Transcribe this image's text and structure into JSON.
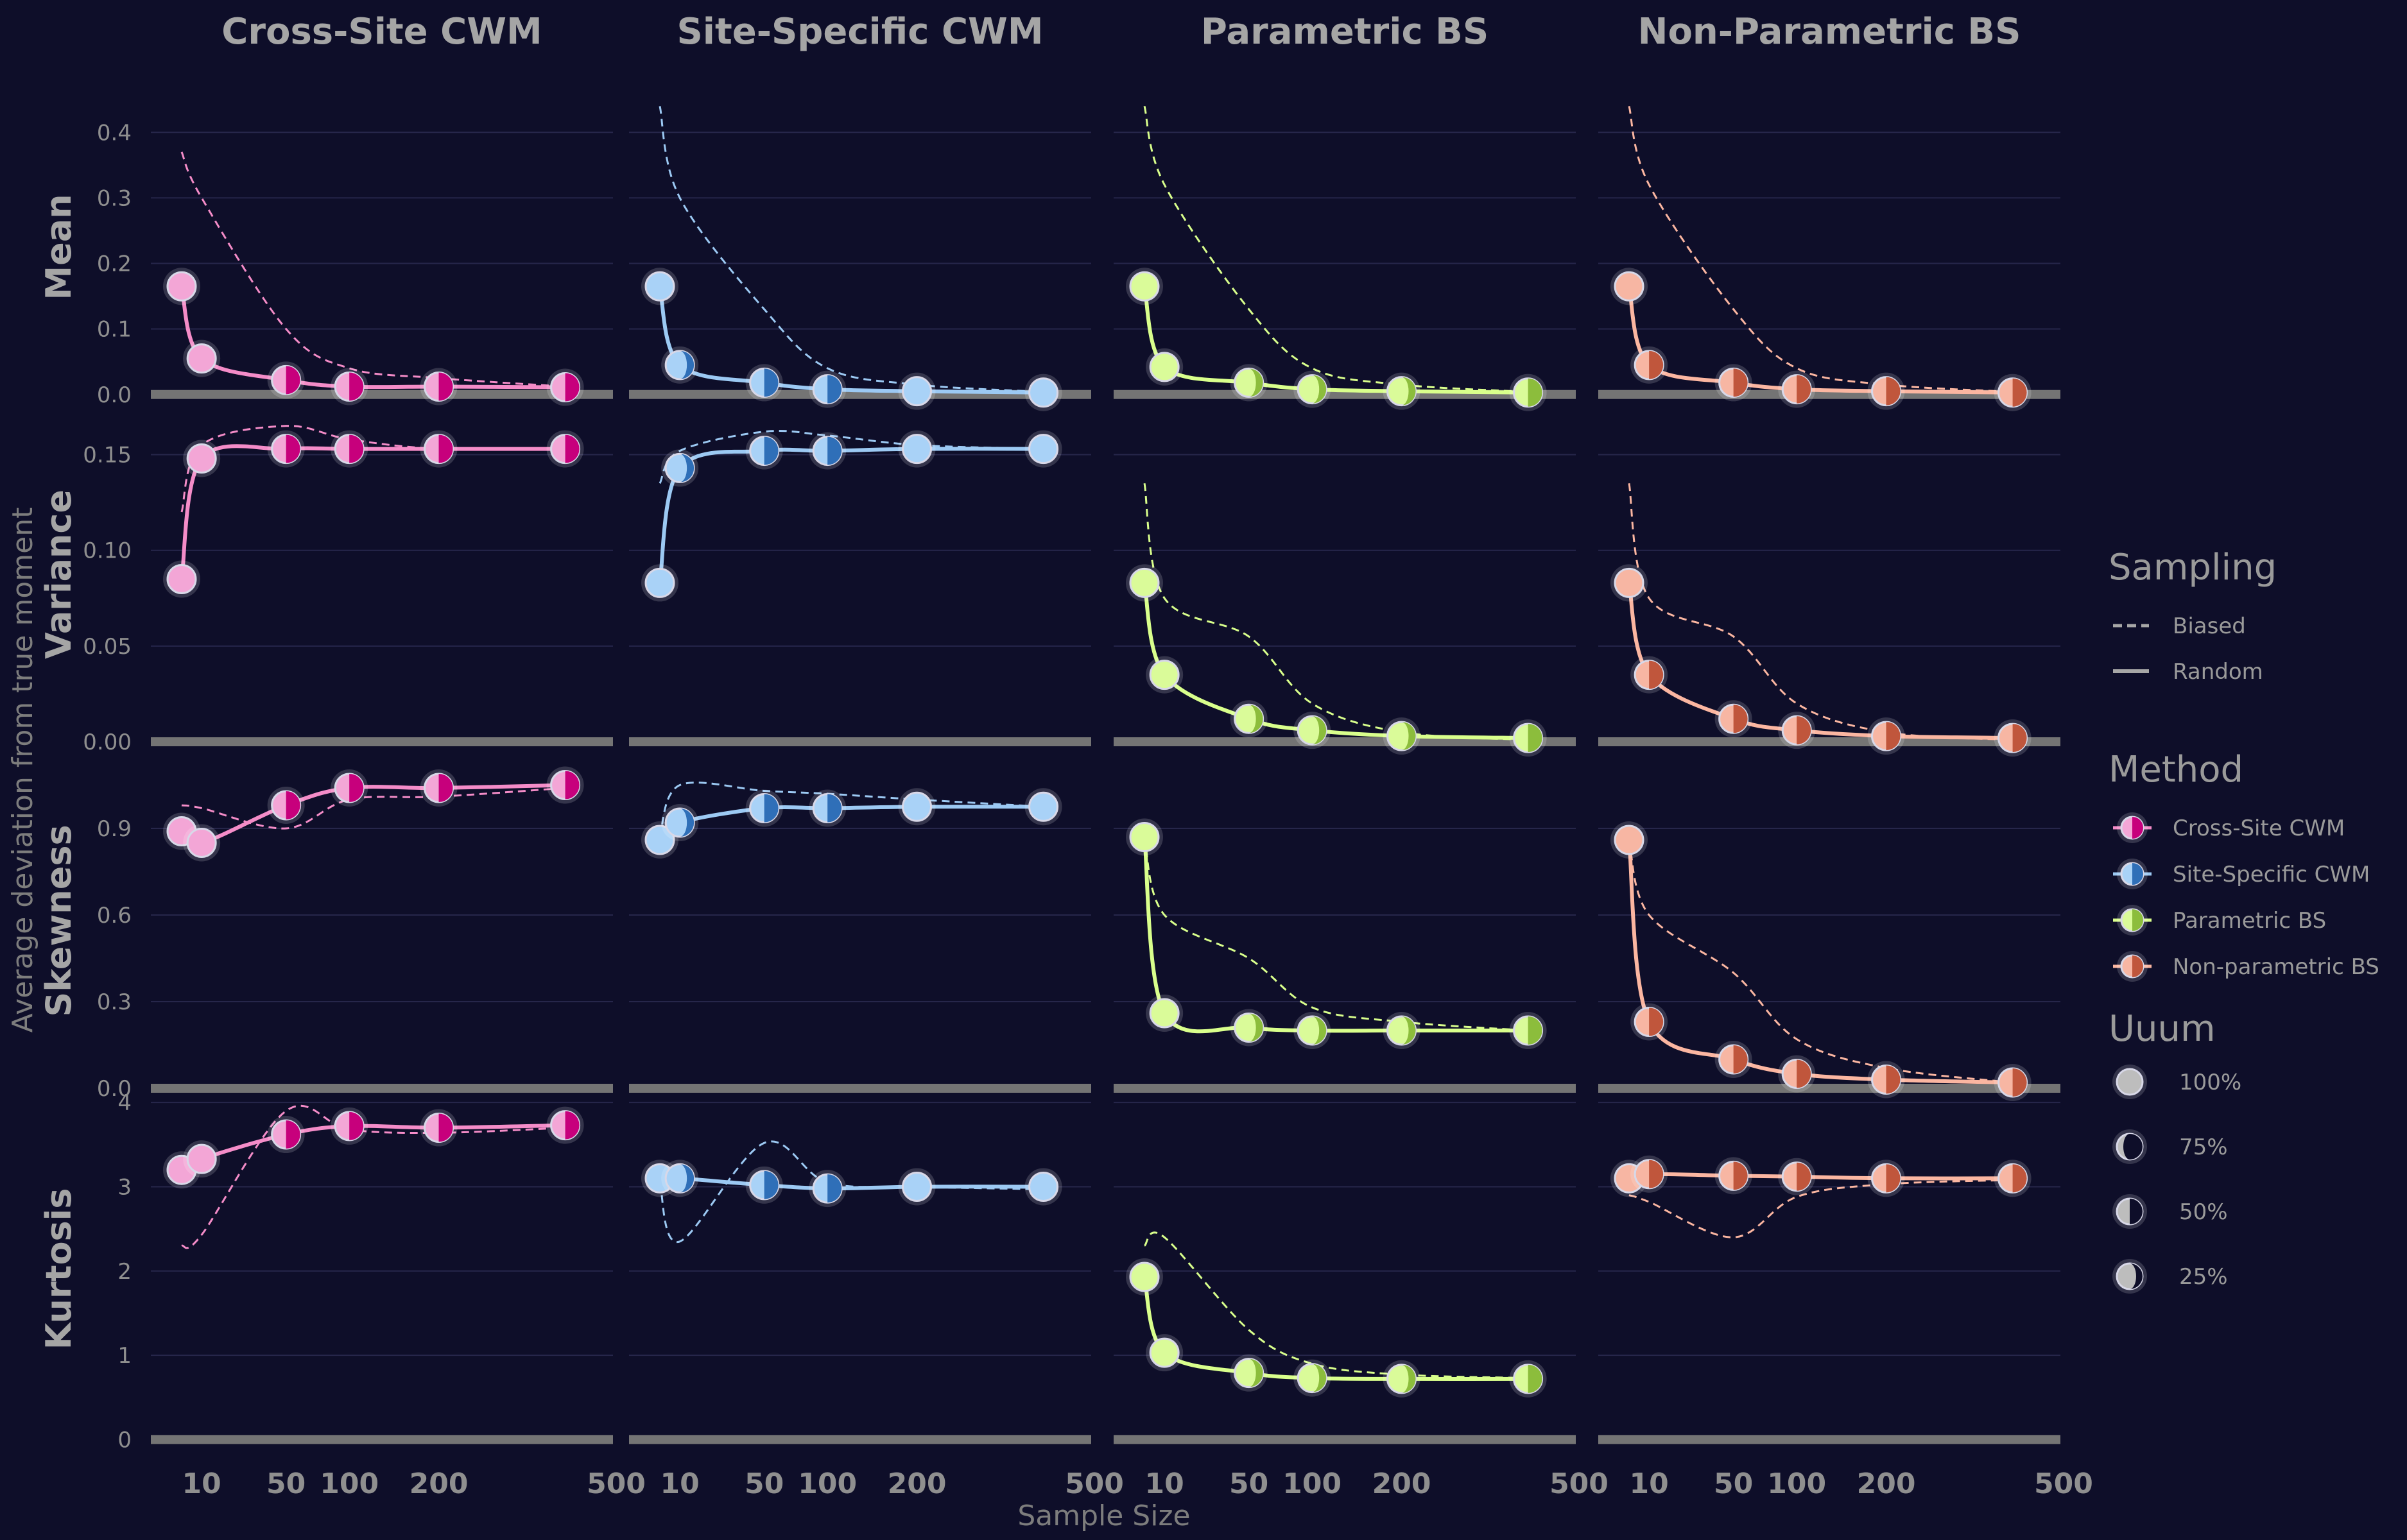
{
  "chart_data": {
    "type": "line",
    "xlabel": "Sample Size",
    "ylabel": "Average deviation from true moment",
    "x": [
      5,
      10,
      50,
      100,
      200,
      400
    ],
    "x_ticks": [
      10,
      50,
      100,
      200,
      500
    ],
    "x_tick_labels": [
      "10",
      "50",
      "100",
      "200",
      "500"
    ],
    "columns": [
      "Cross-Site CWM",
      "Site-Specific CWM",
      "Parametric BS",
      "Non-Parametric BS"
    ],
    "rows": [
      {
        "label": "Mean",
        "ylim": [
          -0.01,
          0.46
        ],
        "ticks": [
          0.0,
          0.1,
          0.2,
          0.3,
          0.4
        ],
        "tick_labels": [
          "0.0",
          "0.1",
          "0.2",
          "0.3",
          "0.4"
        ]
      },
      {
        "label": "Variance",
        "ylim": [
          -0.003,
          0.178
        ],
        "ticks": [
          0.0,
          0.05,
          0.1,
          0.15
        ],
        "tick_labels": [
          "0.00",
          "0.05",
          "0.10",
          "0.15"
        ]
      },
      {
        "label": "Skewness",
        "ylim": [
          -0.02,
          1.18
        ],
        "ticks": [
          0.0,
          0.3,
          0.6,
          0.9
        ],
        "tick_labels": [
          "0.0",
          "0.3",
          "0.6",
          "0.9"
        ]
      },
      {
        "label": "Kurtosis",
        "ylim": [
          -0.05,
          4.1
        ],
        "ticks": [
          0,
          1,
          2,
          3,
          4
        ],
        "tick_labels": [
          "0",
          "1",
          "2",
          "3",
          "4"
        ]
      }
    ],
    "series": [
      {
        "name": "Cross-Site CWM",
        "line_color": "#f48cc8",
        "point_fill": "#f3a6d6",
        "point_dark": "#c7007c",
        "random": [
          [
            0.165,
            0.055,
            0.022,
            0.012,
            0.012,
            0.011
          ],
          [
            0.085,
            0.148,
            0.153,
            0.153,
            0.153,
            0.153
          ],
          [
            0.89,
            0.85,
            0.98,
            1.04,
            1.04,
            1.05
          ],
          [
            3.2,
            3.33,
            3.62,
            3.72,
            3.7,
            3.73
          ]
        ],
        "biased": [
          [
            0.37,
            0.3,
            0.1,
            0.04,
            0.025,
            0.012
          ],
          [
            0.12,
            0.155,
            0.165,
            0.158,
            0.153,
            0.153
          ],
          [
            0.98,
            0.97,
            0.9,
            1.0,
            1.01,
            1.04
          ],
          [
            2.3,
            2.43,
            3.9,
            3.68,
            3.64,
            3.7
          ]
        ],
        "coverage": [
          1.0,
          1.0,
          0.5,
          0.5,
          0.5,
          0.5
        ]
      },
      {
        "name": "Site-Specific CWM",
        "line_color": "#9cc9f3",
        "point_fill": "#a9d2f7",
        "point_dark": "#2f6fb8",
        "random": [
          [
            0.165,
            0.045,
            0.018,
            0.008,
            0.005,
            0.003
          ],
          [
            0.083,
            0.143,
            0.152,
            0.152,
            0.153,
            0.153
          ],
          [
            0.86,
            0.92,
            0.97,
            0.97,
            0.975,
            0.975
          ],
          [
            3.1,
            3.1,
            3.02,
            2.98,
            3.0,
            3.0
          ]
        ],
        "biased": [
          [
            0.44,
            0.3,
            0.13,
            0.04,
            0.015,
            0.004
          ],
          [
            0.135,
            0.152,
            0.162,
            0.16,
            0.155,
            0.153
          ],
          [
            0.87,
            1.05,
            1.03,
            1.02,
            1.0,
            0.975
          ],
          [
            3.05,
            2.35,
            3.52,
            3.05,
            3.0,
            2.97
          ]
        ],
        "coverage": [
          1.0,
          0.75,
          0.5,
          0.5,
          1.0,
          1.0
        ]
      },
      {
        "name": "Parametric BS",
        "line_color": "#d9ff8c",
        "point_fill": "#dafb99",
        "point_dark": "#8cbd3c",
        "random": [
          [
            0.165,
            0.042,
            0.018,
            0.008,
            0.005,
            0.003
          ],
          [
            0.083,
            0.035,
            0.012,
            0.006,
            0.003,
            0.002
          ],
          [
            0.87,
            0.26,
            0.21,
            0.2,
            0.2,
            0.2
          ],
          [
            1.93,
            1.03,
            0.79,
            0.73,
            0.72,
            0.72
          ]
        ],
        "biased": [
          [
            0.44,
            0.32,
            0.13,
            0.04,
            0.015,
            0.004
          ],
          [
            0.135,
            0.075,
            0.055,
            0.02,
            0.005,
            0.001
          ],
          [
            0.87,
            0.6,
            0.45,
            0.28,
            0.23,
            0.2
          ],
          [
            2.3,
            2.4,
            1.3,
            0.9,
            0.77,
            0.73
          ]
        ],
        "coverage": [
          1.0,
          1.0,
          0.75,
          0.75,
          0.75,
          0.5
        ]
      },
      {
        "name": "Non-parametric BS",
        "line_color": "#fbb6a1",
        "point_fill": "#f7b6a3",
        "point_dark": "#c0563c",
        "random": [
          [
            0.165,
            0.045,
            0.018,
            0.008,
            0.005,
            0.003
          ],
          [
            0.083,
            0.035,
            0.012,
            0.006,
            0.003,
            0.002
          ],
          [
            0.86,
            0.23,
            0.1,
            0.05,
            0.03,
            0.02
          ],
          [
            3.1,
            3.15,
            3.13,
            3.12,
            3.1,
            3.1
          ]
        ],
        "biased": [
          [
            0.44,
            0.32,
            0.13,
            0.04,
            0.015,
            0.004
          ],
          [
            0.135,
            0.075,
            0.055,
            0.02,
            0.005,
            0.001
          ],
          [
            0.86,
            0.6,
            0.4,
            0.17,
            0.07,
            0.02
          ],
          [
            2.9,
            2.82,
            2.4,
            2.88,
            3.03,
            3.08
          ]
        ],
        "coverage": [
          1.0,
          0.5,
          0.5,
          0.5,
          0.5,
          0.5
        ]
      }
    ],
    "legend": {
      "placement": "right",
      "sampling": {
        "title": "Sampling",
        "items": [
          "Biased",
          "Random"
        ]
      },
      "method": {
        "title": "Method",
        "items": [
          "Cross-Site CWM",
          "Site-Specific CWM",
          "Parametric BS",
          "Non-parametric BS"
        ]
      },
      "uuum": {
        "title": "Uuum",
        "items": [
          "100%",
          "75%",
          "50%",
          "25%"
        ],
        "levels": [
          1.0,
          0.75,
          0.5,
          0.25
        ]
      }
    },
    "colors": {
      "background": "#0e0e29",
      "text": "#a5a5a5",
      "gridline": "#26264a",
      "zero_line": "#747474"
    }
  }
}
